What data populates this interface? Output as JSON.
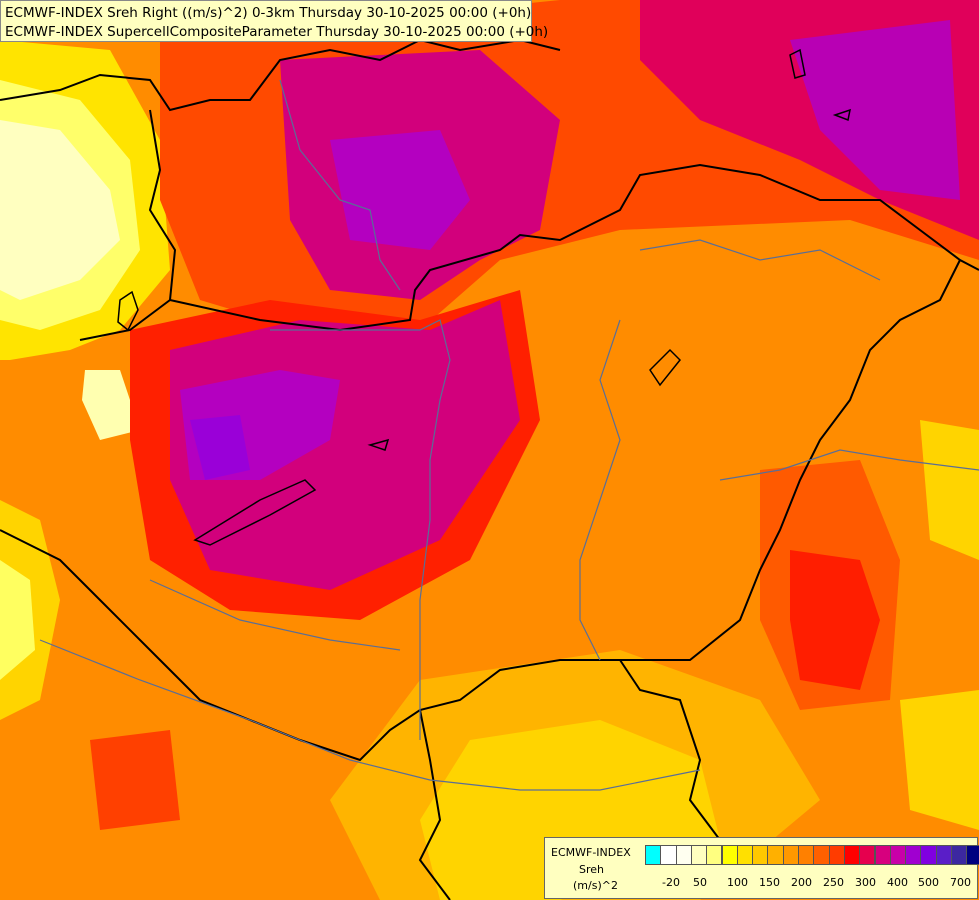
{
  "header": {
    "line1": "ECMWF-INDEX Sreh Right ((m/s)^2) 0-3km Thursday 30-10-2025 00:00 (+0h)",
    "line2": "ECMWF-INDEX SupercellCompositeParameter Thursday 30-10-2025 00:00 (+0h)"
  },
  "legend": {
    "source": "ECMWF-INDEX",
    "variable": "Sreh",
    "unit": "(m/s)^2",
    "ticks": [
      "-20",
      "50",
      "100",
      "150",
      "200",
      "250",
      "300",
      "400",
      "500",
      "700"
    ],
    "colors": [
      "#00ffff",
      "#ffffff",
      "#fffff0",
      "#ffffc0",
      "#ffff80",
      "#ffff00",
      "#ffe000",
      "#ffc800",
      "#ffb000",
      "#ff9800",
      "#ff8000",
      "#ff6000",
      "#ff3c00",
      "#ff0000",
      "#e6004e",
      "#d7007e",
      "#c800a8",
      "#a000d0",
      "#8000e0",
      "#5a1ec8",
      "#3c28a0",
      "#000080"
    ]
  },
  "colors": {
    "background": "#ff8c00",
    "high_region": "#d2007c",
    "peak_region": "#9a00d8",
    "low_region": "#ffff60",
    "border_line": "#000000",
    "river_line": "#5a6e96"
  },
  "map": {
    "description_icons": [
      "country-border-lines",
      "river-lines",
      "lake-shapes"
    ]
  }
}
